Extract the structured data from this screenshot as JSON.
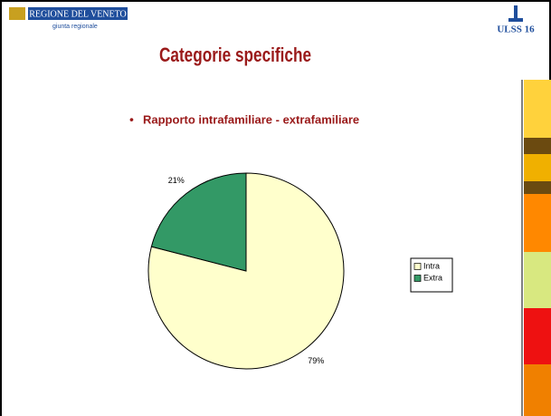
{
  "slide": {
    "logo_left": {
      "name": "REGIONE DEL VENETO",
      "sub": "giunta regionale"
    },
    "logo_right": "ULSS 16",
    "title": "Categorie specifiche",
    "bullet": "Rapporto intrafamiliare - extrafamiliare"
  },
  "chart_data": {
    "type": "pie",
    "categories": [
      "Intra",
      "Extra"
    ],
    "values": [
      79,
      21
    ],
    "value_labels": [
      "79%",
      "21%"
    ],
    "colors": [
      "#ffffcc",
      "#339966"
    ],
    "legend": "right"
  }
}
